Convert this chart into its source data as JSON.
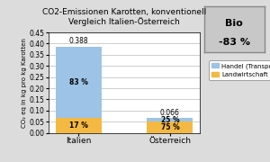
{
  "categories": [
    "Italien",
    "Österreich"
  ],
  "handel_values": [
    0.3212,
    0.0165
  ],
  "landwirtschaft_values": [
    0.066,
    0.0495
  ],
  "totals": [
    0.388,
    0.066
  ],
  "handel_pct": [
    "83 %",
    "25 %"
  ],
  "landwirtschaft_pct": [
    "17 %",
    "75 %"
  ],
  "handel_color": "#9DC3E6",
  "landwirtschaft_color": "#F4B942",
  "title_line1": "CO2-Emissionen Karotten, konventionell",
  "title_line2": "Vergleich Italien-Österreich",
  "ylabel": "CO₂ eq in kg pro kg Karotten",
  "ylim": [
    0,
    0.45
  ],
  "yticks": [
    0.0,
    0.05,
    0.1,
    0.15,
    0.2,
    0.25,
    0.3,
    0.35,
    0.4,
    0.45
  ],
  "legend_handel": "Handel (Transport)",
  "legend_landwirtschaft": "Landwirtschaft",
  "background_color": "#DCDCDC",
  "plot_bg_color": "#FFFFFF",
  "grid_color": "#BBBBBB",
  "bio_bg": "#C8C8C8",
  "bio_text1": "Bio",
  "bio_text2": "-83 %"
}
